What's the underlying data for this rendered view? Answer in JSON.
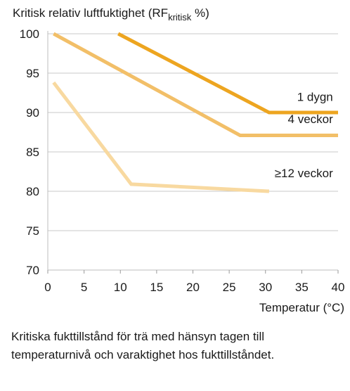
{
  "chart_data": {
    "type": "line",
    "title_main": "Kritisk relativ luftfuktighet (RF",
    "title_sub": "kritisk",
    "title_end": " %)",
    "xlabel": "Temperatur (°C)",
    "ylabel": "",
    "xlim": [
      0,
      40
    ],
    "ylim": [
      70,
      100
    ],
    "x_ticks": [
      0,
      5,
      10,
      15,
      20,
      25,
      30,
      35,
      40
    ],
    "y_ticks": [
      70,
      75,
      80,
      85,
      90,
      95,
      100
    ],
    "grid": true,
    "series": [
      {
        "name": "1 dygn",
        "color": "#eda520",
        "points": [
          [
            9.7,
            100
          ],
          [
            30.5,
            90
          ],
          [
            40,
            90
          ]
        ]
      },
      {
        "name": "4 veckor",
        "color": "#f2bf68",
        "points": [
          [
            0.8,
            100
          ],
          [
            26.5,
            87.1
          ],
          [
            40,
            87.1
          ]
        ]
      },
      {
        "name": "≥12 veckor",
        "color": "#f8d9a0",
        "points": [
          [
            0.8,
            93.8
          ],
          [
            11.5,
            80.9
          ],
          [
            30.5,
            80
          ]
        ]
      }
    ],
    "series_labels": [
      {
        "text": "1 dygn",
        "x": 39.3,
        "y": 92.0
      },
      {
        "text": "4 veckor",
        "x": 39.3,
        "y": 89.2
      },
      {
        "text": "≥12 veckor",
        "x": 39.3,
        "y": 82.3
      }
    ]
  },
  "caption": {
    "line1": "Kritiska fukttillstånd för trä med hänsyn tagen till",
    "line2": "temperaturnivå och varaktighet hos fukttillståndet."
  }
}
